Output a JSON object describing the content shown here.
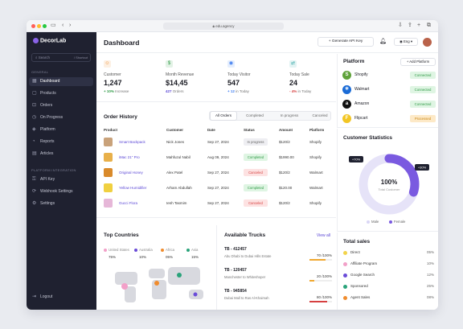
{
  "browser": {
    "url": "edu.agency"
  },
  "sidebar": {
    "brand": "DecorLab",
    "search_placeholder": "Search",
    "search_shortcut": "/ Shortcut",
    "general_label": "GENERAL",
    "general_items": [
      {
        "label": "Dashboard",
        "icon": "grid-icon"
      },
      {
        "label": "Products",
        "icon": "box-icon"
      },
      {
        "label": "Orders",
        "icon": "cart-icon"
      },
      {
        "label": "On Progress",
        "icon": "clock-icon"
      },
      {
        "label": "Platform",
        "icon": "layers-icon"
      },
      {
        "label": "Reports",
        "icon": "chart-icon"
      },
      {
        "label": "Articles",
        "icon": "document-icon"
      }
    ],
    "integration_label": "PLATFORM INTEGRATION",
    "integration_items": [
      {
        "label": "API Key",
        "icon": "key-icon"
      },
      {
        "label": "Webhook Settings",
        "icon": "webhook-icon"
      },
      {
        "label": "Settings",
        "icon": "gear-icon"
      }
    ],
    "logout": "Logout"
  },
  "header": {
    "title": "Dashboard",
    "api_button": "Generate API Key",
    "language": "Eng"
  },
  "stats": [
    {
      "label": "Customer",
      "value": "1,247",
      "change": "+ 10%",
      "suffix": "Increase",
      "color": "#f08c2e",
      "change_color": "#2f9a46",
      "icon": "user-icon"
    },
    {
      "label": "Month Revenue",
      "value": "$14,45",
      "change": "427",
      "suffix": "Orders",
      "color": "#2f9a46",
      "change_color": "#5b47d6",
      "icon": "dollar-icon"
    },
    {
      "label": "Today Visitor",
      "value": "547",
      "change": "+ 12",
      "suffix": "in Today",
      "color": "#3d7cf0",
      "change_color": "#3d7cf0",
      "icon": "eye-icon"
    },
    {
      "label": "Today Sale",
      "value": "24",
      "change": "- 4%",
      "suffix": "in Today",
      "color": "#2aa3a3",
      "change_color": "#d64040",
      "icon": "swap-icon"
    }
  ],
  "orders": {
    "title": "Order History",
    "tabs": [
      "All Orders",
      "Completed",
      "In progress",
      "Canceled"
    ],
    "columns": [
      "Product",
      "Customer",
      "Date",
      "Status",
      "Amount",
      "Platform"
    ],
    "rows": [
      {
        "product": "Smart Backpack",
        "customer": "Nick Jones",
        "date": "Sep 27, 2024",
        "status": "In progress",
        "status_class": "progress",
        "amount": "$120/2",
        "platform": "Shopify",
        "color": "#c9a27a"
      },
      {
        "product": "iMac 21\" Pro",
        "customer": "Mahfuzul Nabil",
        "date": "Aug 09, 2024",
        "status": "Completed",
        "status_class": "completed",
        "amount": "$1990.00",
        "platform": "Shopify",
        "color": "#e8b04a"
      },
      {
        "product": "Original Honey",
        "customer": "Alex Patel",
        "date": "Sep 27, 2024",
        "status": "Canceled",
        "status_class": "cancelled",
        "amount": "$120/2",
        "platform": "Walmart",
        "color": "#d98a2b"
      },
      {
        "product": "Yellow Humidifier",
        "customer": "Arham Abdullah",
        "date": "Sep 27, 2024",
        "status": "Completed",
        "status_class": "completed",
        "amount": "$120.00",
        "platform": "Walmart",
        "color": "#f0d040"
      },
      {
        "product": "Gucci Flora",
        "customer": "Ienh Tasmim",
        "date": "Sep 27, 2024",
        "status": "Canceled",
        "status_class": "cancelled",
        "amount": "$120/2",
        "platform": "Shopify",
        "color": "#e6b7d8"
      }
    ]
  },
  "countries": {
    "title": "Top Countries",
    "items": [
      {
        "name": "United States",
        "value": "75%",
        "color": "#f2a0c8"
      },
      {
        "name": "Australia",
        "value": "10%",
        "color": "#6a4cd8"
      },
      {
        "name": "Africa",
        "value": "05%",
        "color": "#f08c2e"
      },
      {
        "name": "Asia",
        "value": "15%",
        "color": "#2aa37a"
      }
    ]
  },
  "trucks": {
    "title": "Available Trucks",
    "view_all": "View all",
    "items": [
      {
        "id": "TB - 412457",
        "route": "Abu Dhabi to Dubai Hills Estate",
        "count": "70 /100%",
        "level": 0.7,
        "color": "#f0a830"
      },
      {
        "id": "TB - 120457",
        "route": "Manchester to Whiteshoper",
        "count": "20 /100%",
        "level": 0.2,
        "color": "#f0a830"
      },
      {
        "id": "TB - 945854",
        "route": "Dubai Mall to Ras Al-Khaimah",
        "count": "80 /100%",
        "level": 0.8,
        "color": "#d64040"
      }
    ]
  },
  "platform": {
    "title": "Platform",
    "add_button": "+ Add Platform",
    "items": [
      {
        "name": "Shopify",
        "status": "Connected",
        "kind": "conn",
        "color": "#5fa23a",
        "glyph": "S"
      },
      {
        "name": "Walmart",
        "status": "Connected",
        "kind": "conn",
        "color": "#1a6bd6",
        "glyph": "✳"
      },
      {
        "name": "Amazon",
        "status": "Connected",
        "kind": "conn",
        "color": "#111111",
        "glyph": "a"
      },
      {
        "name": "Flipcart",
        "status": "Processed",
        "kind": "proc",
        "color": "#f2c624",
        "glyph": "F"
      }
    ]
  },
  "customer_stats": {
    "title": "Customer Statistics",
    "center_value": "100%",
    "center_label": "Total Customer",
    "female_pct_label": "+30%",
    "male_pct_label": "+70%",
    "legend": [
      {
        "name": "Male",
        "color": "#d9d6f5"
      },
      {
        "name": "Female",
        "color": "#7a5ae0"
      }
    ],
    "male_share": 0.7
  },
  "total_sales": {
    "title": "Total sales",
    "items": [
      {
        "name": "Direct",
        "value": "05%",
        "color": "#f2d34a"
      },
      {
        "name": "Affiliate Program",
        "value": "10%",
        "color": "#f2a0c8"
      },
      {
        "name": "Google Search",
        "value": "12%",
        "color": "#6a4cd8"
      },
      {
        "name": "Sponsored",
        "value": "25%",
        "color": "#2aa37a"
      },
      {
        "name": "Agent Sales",
        "value": "08%",
        "color": "#f08c2e"
      }
    ]
  }
}
